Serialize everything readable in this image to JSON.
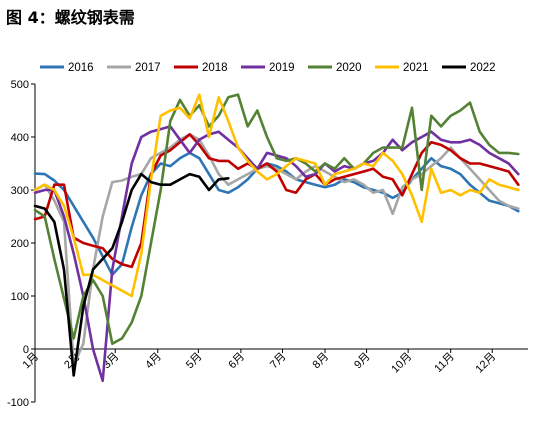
{
  "title": "图 4：螺纹钢表需",
  "chart_data": {
    "type": "line",
    "title": "图 4：螺纹钢表需",
    "xlabel": "",
    "ylabel": "",
    "ylim": [
      -100,
      500
    ],
    "yticks": [
      -100,
      0,
      100,
      200,
      300,
      400,
      500
    ],
    "xlim": [
      0,
      51
    ],
    "x_ticks": [
      {
        "x": 0,
        "label": "1月"
      },
      {
        "x": 4.3,
        "label": "2月"
      },
      {
        "x": 8.3,
        "label": "3月"
      },
      {
        "x": 12.7,
        "label": "4月"
      },
      {
        "x": 16.9,
        "label": "5月"
      },
      {
        "x": 21.3,
        "label": "6月"
      },
      {
        "x": 25.6,
        "label": "7月"
      },
      {
        "x": 30.0,
        "label": "8月"
      },
      {
        "x": 34.3,
        "label": "9月"
      },
      {
        "x": 38.6,
        "label": "10月"
      },
      {
        "x": 43.0,
        "label": "11月"
      },
      {
        "x": 47.3,
        "label": "12月"
      }
    ],
    "grid": false,
    "legend_position": "top",
    "series": [
      {
        "name": "2016",
        "color": "#2e75b6",
        "x_start": 0,
        "values": [
          331,
          330,
          318,
          300,
          270,
          240,
          210,
          175,
          140,
          160,
          230,
          290,
          330,
          350,
          345,
          360,
          370,
          360,
          330,
          300,
          295,
          305,
          320,
          340,
          350,
          345,
          335,
          320,
          315,
          310,
          305,
          310,
          320,
          315,
          305,
          300,
          295,
          285,
          295,
          320,
          340,
          360,
          345,
          340,
          330,
          310,
          295,
          280,
          275,
          270,
          260
        ]
      },
      {
        "name": "2017",
        "color": "#a6a6a6",
        "x_start": 0,
        "values": [
          300,
          310,
          280,
          240,
          -30,
          10,
          150,
          250,
          315,
          318,
          325,
          330,
          360,
          370,
          380,
          395,
          405,
          395,
          365,
          330,
          310,
          320,
          330,
          340,
          345,
          340,
          330,
          320,
          335,
          345,
          335,
          325,
          315,
          320,
          310,
          295,
          300,
          255,
          305,
          320,
          330,
          345,
          360,
          380,
          360,
          340,
          320,
          300,
          280,
          270,
          265
        ]
      },
      {
        "name": "2018",
        "color": "#c00000",
        "x_start": 0,
        "values": [
          245,
          250,
          310,
          310,
          210,
          200,
          195,
          190,
          170,
          160,
          155,
          200,
          330,
          365,
          375,
          390,
          405,
          385,
          360,
          355,
          355,
          340,
          350,
          340,
          350,
          335,
          300,
          295,
          320,
          330,
          310,
          320,
          325,
          330,
          335,
          340,
          325,
          320,
          290,
          330,
          370,
          390,
          385,
          375,
          360,
          350,
          350,
          345,
          340,
          335,
          310
        ]
      },
      {
        "name": "2019",
        "color": "#7030a0",
        "x_start": 0,
        "values": [
          295,
          300,
          300,
          250,
          180,
          100,
          0,
          -60,
          150,
          250,
          350,
          400,
          410,
          415,
          420,
          395,
          370,
          395,
          405,
          410,
          395,
          380,
          360,
          340,
          370,
          365,
          360,
          345,
          325,
          330,
          350,
          335,
          345,
          340,
          350,
          355,
          370,
          395,
          375,
          390,
          400,
          410,
          395,
          390,
          390,
          395,
          385,
          370,
          360,
          350,
          330
        ]
      },
      {
        "name": "2020",
        "color": "#548235",
        "x_start": 0,
        "values": [
          262,
          250,
          170,
          95,
          20,
          100,
          130,
          100,
          10,
          20,
          50,
          100,
          200,
          300,
          430,
          470,
          440,
          460,
          420,
          440,
          475,
          480,
          420,
          450,
          400,
          360,
          355,
          360,
          350,
          335,
          350,
          340,
          360,
          340,
          350,
          370,
          380,
          380,
          380,
          455,
          300,
          440,
          420,
          440,
          450,
          465,
          410,
          385,
          370,
          370,
          368
        ]
      },
      {
        "name": "2021",
        "color": "#ffc000",
        "x_start": 0,
        "values": [
          300,
          310,
          300,
          270,
          210,
          140,
          140,
          130,
          120,
          110,
          100,
          180,
          320,
          440,
          450,
          455,
          435,
          480,
          400,
          475,
          430,
          380,
          355,
          335,
          320,
          330,
          345,
          360,
          355,
          350,
          310,
          330,
          335,
          340,
          350,
          345,
          370,
          355,
          330,
          290,
          240,
          340,
          295,
          300,
          290,
          300,
          295,
          320,
          310,
          305,
          300
        ]
      },
      {
        "name": "2022",
        "color": "#000000",
        "x_start": 0,
        "values": [
          270,
          265,
          240,
          150,
          -50,
          80,
          150,
          170,
          190,
          240,
          300,
          330,
          315,
          310,
          310,
          320,
          330,
          325,
          300,
          320,
          322
        ]
      }
    ]
  }
}
